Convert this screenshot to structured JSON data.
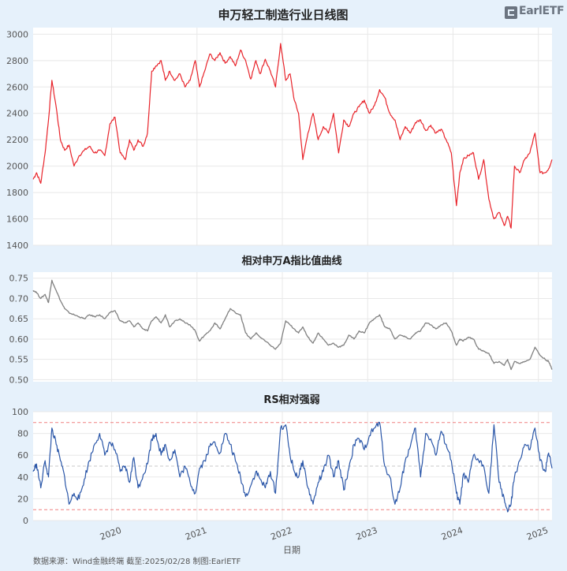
{
  "logo": {
    "text": "EarlETF",
    "subtext": ""
  },
  "footer": {
    "source": "数据来源：Wind金融终端 截至:2025/02/28 制图:EarlETF"
  },
  "x_axis": {
    "label": "日期",
    "ticks": [
      "2020",
      "2021",
      "2022",
      "2023",
      "2024",
      "2025"
    ],
    "range": [
      2019.08,
      2025.16
    ]
  },
  "colors": {
    "panel1_line": "#e8232a",
    "panel2_line": "#808080",
    "panel3_line": "#2a56a8",
    "threshold_line": "#f08080",
    "midline": "#c8c8c8",
    "grid": "#e8e8e8",
    "panel_bg": "#ffffff",
    "page_bg": "#e6f1fb"
  },
  "chart_data": [
    {
      "type": "line",
      "title": "申万轻工制造行业日线图",
      "ylim": [
        1400,
        3050
      ],
      "yticks": [
        1400,
        1600,
        1800,
        2000,
        2200,
        2400,
        2600,
        2800,
        3000
      ],
      "series": [
        {
          "x": [
            2019.08,
            2019.12,
            2019.17,
            2019.22,
            2019.26,
            2019.3,
            2019.35,
            2019.4,
            2019.45,
            2019.5,
            2019.56,
            2019.62,
            2019.68,
            2019.74,
            2019.8,
            2019.86,
            2019.92,
            2019.98,
            2020.04,
            2020.1,
            2020.16,
            2020.21,
            2020.26,
            2020.31,
            2020.37,
            2020.42,
            2020.47,
            2020.52,
            2020.58,
            2020.63,
            2020.68,
            2020.74,
            2020.8,
            2020.86,
            2020.92,
            2020.98,
            2021.03,
            2021.09,
            2021.15,
            2021.21,
            2021.27,
            2021.33,
            2021.39,
            2021.45,
            2021.51,
            2021.57,
            2021.63,
            2021.69,
            2021.74,
            2021.8,
            2021.86,
            2021.92,
            2021.98,
            2022.04,
            2022.09,
            2022.14,
            2022.19,
            2022.24,
            2022.3,
            2022.36,
            2022.42,
            2022.48,
            2022.54,
            2022.6,
            2022.66,
            2022.72,
            2022.78,
            2022.84,
            2022.9,
            2022.96,
            2023.02,
            2023.08,
            2023.14,
            2023.2,
            2023.26,
            2023.32,
            2023.38,
            2023.44,
            2023.5,
            2023.56,
            2023.62,
            2023.68,
            2023.74,
            2023.8,
            2023.86,
            2023.92,
            2023.98,
            2024.04,
            2024.08,
            2024.12,
            2024.18,
            2024.24,
            2024.3,
            2024.36,
            2024.42,
            2024.48,
            2024.54,
            2024.6,
            2024.64,
            2024.68,
            2024.72,
            2024.78,
            2024.84,
            2024.9,
            2024.96,
            2025.02,
            2025.08,
            2025.12,
            2025.16
          ],
          "values": [
            1900,
            1950,
            1870,
            2100,
            2350,
            2650,
            2450,
            2200,
            2120,
            2160,
            2000,
            2080,
            2120,
            2150,
            2100,
            2120,
            2080,
            2320,
            2370,
            2100,
            2050,
            2200,
            2120,
            2200,
            2150,
            2250,
            2720,
            2760,
            2800,
            2650,
            2720,
            2650,
            2700,
            2600,
            2650,
            2800,
            2600,
            2720,
            2850,
            2800,
            2860,
            2780,
            2830,
            2760,
            2880,
            2800,
            2660,
            2800,
            2700,
            2810,
            2720,
            2600,
            2930,
            2650,
            2700,
            2500,
            2400,
            2050,
            2250,
            2400,
            2200,
            2300,
            2250,
            2400,
            2100,
            2350,
            2300,
            2400,
            2450,
            2500,
            2400,
            2460,
            2580,
            2520,
            2400,
            2350,
            2200,
            2300,
            2250,
            2330,
            2350,
            2270,
            2310,
            2250,
            2280,
            2200,
            2100,
            1700,
            1950,
            2050,
            2080,
            2100,
            1900,
            2050,
            1750,
            1600,
            1650,
            1550,
            1620,
            1530,
            2000,
            1950,
            2050,
            2100,
            2250,
            1950,
            1950,
            1980,
            2050
          ]
        }
      ]
    },
    {
      "type": "line",
      "title": "相对申万A指比值曲线",
      "ylim": [
        0.495,
        0.765
      ],
      "yticks": [
        0.5,
        0.55,
        0.6,
        0.65,
        0.7,
        0.75
      ],
      "series": [
        {
          "x": [
            2019.08,
            2019.12,
            2019.17,
            2019.22,
            2019.26,
            2019.3,
            2019.35,
            2019.4,
            2019.45,
            2019.5,
            2019.56,
            2019.62,
            2019.68,
            2019.74,
            2019.8,
            2019.86,
            2019.92,
            2019.98,
            2020.04,
            2020.1,
            2020.16,
            2020.21,
            2020.26,
            2020.31,
            2020.37,
            2020.42,
            2020.47,
            2020.52,
            2020.58,
            2020.63,
            2020.68,
            2020.74,
            2020.8,
            2020.86,
            2020.92,
            2020.98,
            2021.03,
            2021.09,
            2021.15,
            2021.21,
            2021.27,
            2021.33,
            2021.39,
            2021.45,
            2021.51,
            2021.57,
            2021.63,
            2021.69,
            2021.74,
            2021.8,
            2021.86,
            2021.92,
            2021.98,
            2022.04,
            2022.09,
            2022.14,
            2022.19,
            2022.24,
            2022.3,
            2022.36,
            2022.42,
            2022.48,
            2022.54,
            2022.6,
            2022.66,
            2022.72,
            2022.78,
            2022.84,
            2022.9,
            2022.96,
            2023.02,
            2023.08,
            2023.14,
            2023.2,
            2023.26,
            2023.32,
            2023.38,
            2023.44,
            2023.5,
            2023.56,
            2023.62,
            2023.68,
            2023.74,
            2023.8,
            2023.86,
            2023.92,
            2023.98,
            2024.04,
            2024.08,
            2024.12,
            2024.18,
            2024.24,
            2024.3,
            2024.36,
            2024.42,
            2024.48,
            2024.54,
            2024.6,
            2024.64,
            2024.68,
            2024.72,
            2024.78,
            2024.84,
            2024.9,
            2024.96,
            2025.02,
            2025.08,
            2025.12,
            2025.16
          ],
          "values": [
            0.72,
            0.715,
            0.7,
            0.71,
            0.69,
            0.745,
            0.72,
            0.695,
            0.675,
            0.665,
            0.66,
            0.655,
            0.65,
            0.66,
            0.655,
            0.66,
            0.65,
            0.665,
            0.67,
            0.645,
            0.64,
            0.645,
            0.63,
            0.64,
            0.625,
            0.62,
            0.645,
            0.655,
            0.64,
            0.66,
            0.63,
            0.645,
            0.65,
            0.64,
            0.635,
            0.62,
            0.595,
            0.61,
            0.62,
            0.64,
            0.625,
            0.65,
            0.675,
            0.665,
            0.66,
            0.615,
            0.6,
            0.615,
            0.605,
            0.595,
            0.585,
            0.575,
            0.59,
            0.645,
            0.635,
            0.625,
            0.615,
            0.63,
            0.605,
            0.59,
            0.615,
            0.6,
            0.585,
            0.59,
            0.58,
            0.585,
            0.61,
            0.6,
            0.62,
            0.615,
            0.64,
            0.65,
            0.66,
            0.63,
            0.625,
            0.6,
            0.61,
            0.605,
            0.6,
            0.615,
            0.62,
            0.64,
            0.635,
            0.625,
            0.635,
            0.64,
            0.62,
            0.585,
            0.6,
            0.595,
            0.605,
            0.6,
            0.575,
            0.57,
            0.565,
            0.54,
            0.545,
            0.535,
            0.55,
            0.525,
            0.545,
            0.54,
            0.545,
            0.55,
            0.58,
            0.56,
            0.55,
            0.545,
            0.525
          ]
        }
      ]
    },
    {
      "type": "line",
      "title": "RS相对强弱",
      "ylim": [
        0,
        100
      ],
      "yticks": [
        0,
        20,
        40,
        60,
        80,
        100
      ],
      "thresholds": [
        10,
        50,
        90
      ],
      "series": [
        {
          "x": [
            2019.08,
            2019.12,
            2019.17,
            2019.22,
            2019.26,
            2019.3,
            2019.35,
            2019.4,
            2019.45,
            2019.5,
            2019.56,
            2019.62,
            2019.68,
            2019.74,
            2019.8,
            2019.86,
            2019.92,
            2019.98,
            2020.04,
            2020.1,
            2020.16,
            2020.21,
            2020.26,
            2020.31,
            2020.37,
            2020.42,
            2020.47,
            2020.52,
            2020.58,
            2020.63,
            2020.68,
            2020.74,
            2020.8,
            2020.86,
            2020.92,
            2020.98,
            2021.03,
            2021.09,
            2021.15,
            2021.21,
            2021.27,
            2021.33,
            2021.39,
            2021.45,
            2021.51,
            2021.57,
            2021.63,
            2021.69,
            2021.74,
            2021.8,
            2021.86,
            2021.92,
            2021.98,
            2022.04,
            2022.09,
            2022.14,
            2022.19,
            2022.24,
            2022.3,
            2022.36,
            2022.42,
            2022.48,
            2022.54,
            2022.6,
            2022.66,
            2022.72,
            2022.78,
            2022.84,
            2022.9,
            2022.96,
            2023.02,
            2023.08,
            2023.14,
            2023.2,
            2023.26,
            2023.32,
            2023.38,
            2023.44,
            2023.5,
            2023.56,
            2023.62,
            2023.68,
            2023.74,
            2023.8,
            2023.86,
            2023.92,
            2023.98,
            2024.04,
            2024.08,
            2024.12,
            2024.18,
            2024.24,
            2024.3,
            2024.36,
            2024.42,
            2024.48,
            2024.54,
            2024.6,
            2024.64,
            2024.68,
            2024.72,
            2024.78,
            2024.84,
            2024.9,
            2024.96,
            2025.02,
            2025.08,
            2025.12,
            2025.16
          ],
          "values": [
            45,
            52,
            30,
            55,
            40,
            85,
            70,
            55,
            40,
            15,
            25,
            20,
            38,
            55,
            70,
            80,
            60,
            72,
            65,
            45,
            50,
            35,
            58,
            30,
            42,
            52,
            75,
            80,
            60,
            70,
            55,
            65,
            40,
            50,
            35,
            25,
            48,
            55,
            68,
            72,
            62,
            80,
            70,
            55,
            40,
            22,
            32,
            45,
            38,
            30,
            45,
            25,
            85,
            88,
            60,
            45,
            40,
            55,
            30,
            15,
            35,
            45,
            60,
            40,
            55,
            28,
            48,
            70,
            75,
            65,
            78,
            85,
            90,
            50,
            40,
            15,
            30,
            55,
            68,
            85,
            40,
            80,
            75,
            60,
            82,
            70,
            55,
            25,
            15,
            42,
            35,
            60,
            55,
            50,
            25,
            88,
            35,
            20,
            8,
            15,
            40,
            55,
            70,
            65,
            85,
            55,
            45,
            62,
            48
          ]
        }
      ]
    }
  ]
}
